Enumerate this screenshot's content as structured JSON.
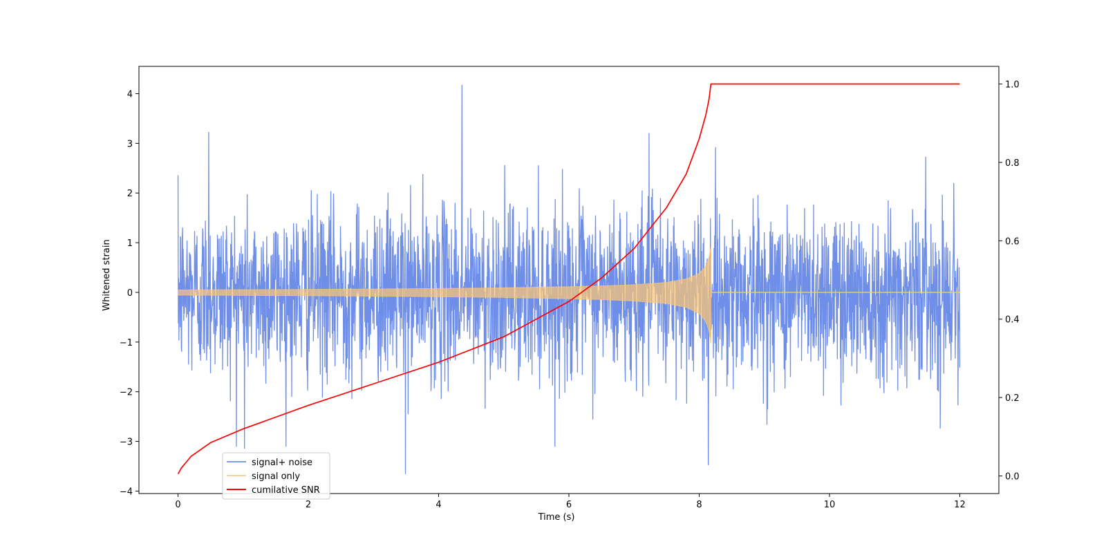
{
  "chart_data": {
    "type": "line",
    "title": "",
    "xlabel": "Time (s)",
    "ylabel": "Whitened strain",
    "y2label": "",
    "xlim": [
      -0.6,
      12.6
    ],
    "ylim": [
      -4.05,
      4.55
    ],
    "y2lim": [
      -0.045,
      1.045
    ],
    "x_ticks": [
      0,
      2,
      4,
      6,
      8,
      10,
      12
    ],
    "y_ticks": [
      -4,
      -3,
      -2,
      -1,
      0,
      1,
      2,
      3,
      4
    ],
    "y2_ticks": [
      0.0,
      0.2,
      0.4,
      0.6,
      0.8,
      1.0
    ],
    "x_tick_labels": [
      "0",
      "2",
      "4",
      "6",
      "8",
      "10",
      "12"
    ],
    "y_tick_labels": [
      "−4",
      "−3",
      "−2",
      "−1",
      "0",
      "1",
      "2",
      "3",
      "4"
    ],
    "y2_tick_labels": [
      "0.0",
      "0.2",
      "0.4",
      "0.6",
      "0.8",
      "1.0"
    ],
    "grid": false,
    "legend": {
      "position": "lower-left"
    },
    "series": [
      {
        "name": "signal+ noise",
        "axis": "left",
        "color": "#6f8ee8",
        "description_of_values": "noise-dominated strain spanning approx -3.7 to 4.2 over t = 0 to 12 s",
        "x_range": [
          0,
          12
        ],
        "noted_extremes": [
          {
            "x": 4.36,
            "y": 4.17
          },
          {
            "x": 0.47,
            "y": 3.22
          },
          {
            "x": 7.23,
            "y": 3.2
          },
          {
            "x": 3.49,
            "y": -3.65
          },
          {
            "x": 8.14,
            "y": -3.47
          },
          {
            "x": 1.02,
            "y": -3.14
          }
        ]
      },
      {
        "name": "signal only",
        "axis": "left",
        "color": "#fbc675",
        "envelope": {
          "x": [
            0,
            1,
            2,
            3,
            4,
            5,
            6,
            6.5,
            7,
            7.5,
            7.8,
            8.0,
            8.1,
            8.15,
            8.18
          ],
          "y": [
            0.05,
            0.055,
            0.06,
            0.068,
            0.078,
            0.092,
            0.115,
            0.13,
            0.155,
            0.2,
            0.27,
            0.38,
            0.52,
            0.7,
            0.92
          ]
        },
        "after_merger_value": 0.0
      },
      {
        "name": "cumilative SNR",
        "axis": "right",
        "color": "#ff0000",
        "x": [
          0,
          0.05,
          0.2,
          0.5,
          1,
          2,
          3,
          4,
          5,
          6,
          6.5,
          7,
          7.5,
          7.8,
          8.0,
          8.1,
          8.15,
          8.18,
          12
        ],
        "values": [
          0.005,
          0.02,
          0.05,
          0.085,
          0.12,
          0.18,
          0.235,
          0.29,
          0.355,
          0.445,
          0.505,
          0.58,
          0.685,
          0.77,
          0.86,
          0.92,
          0.96,
          1.0,
          1.0
        ]
      }
    ]
  }
}
